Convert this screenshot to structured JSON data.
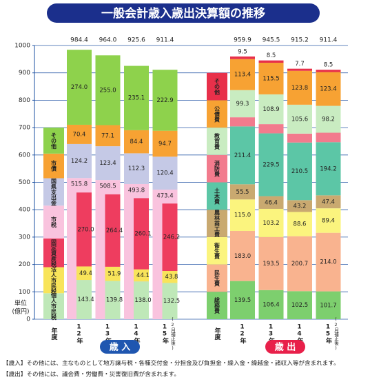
{
  "chart_data": {
    "type": "stacked_bar",
    "title": "一般会計歳入歳出決算額の推移",
    "y_label": [
      "単位",
      "(億円)"
    ],
    "year_label": "年度",
    "categories": [
      "12年",
      "13年",
      "14年",
      "15年"
    ],
    "category_note": "(2月補正後)",
    "ylim": [
      0,
      1000
    ],
    "yticks": [
      0,
      100,
      200,
      300,
      400,
      500,
      600,
      700,
      800,
      900,
      1000
    ],
    "grid": true,
    "groups": [
      {
        "name": "歳 入",
        "color": "#1f56b0",
        "totals": [
          984.4,
          964.0,
          925.6,
          911.4
        ],
        "total_labels": [
          "984.4",
          "964.0",
          "925.6",
          "911.4"
        ],
        "series": [
          {
            "name": "市税",
            "color": "#f9c3de",
            "values": [
              515.8,
              508.5,
              493.8,
              473.4
            ],
            "value_labels": [
              "515.8",
              "508.5",
              "493.8",
              "473.4"
            ],
            "parts": [
              {
                "name": "個人市民税",
                "color": "#bfe8b8",
                "values": [
                  143.4,
                  139.8,
                  138.0,
                  132.5
                ],
                "value_labels": [
                  "143.4",
                  "139.8",
                  "138.0",
                  "132.5"
                ]
              },
              {
                "name": "法人市民税",
                "color": "#f8e45a",
                "values": [
                  49.4,
                  51.9,
                  44.1,
                  43.8
                ],
                "value_labels": [
                  "49.4",
                  "51.9",
                  "44.1",
                  "43.8"
                ]
              },
              {
                "name": "固定資産税",
                "color": "#ee3d5f",
                "values": [
                  270.0,
                  264.4,
                  260.1,
                  246.2
                ],
                "value_labels": [
                  "270.0",
                  "264.4",
                  "260.1",
                  "246.2"
                ]
              }
            ]
          },
          {
            "name": "国県支出金",
            "color": "#c5c9e6",
            "values": [
              124.2,
              123.4,
              112.3,
              120.4
            ],
            "value_labels": [
              "124.2",
              "123.4",
              "112.3",
              "120.4"
            ]
          },
          {
            "name": "市債",
            "color": "#f7a233",
            "values": [
              70.4,
              77.1,
              84.4,
              94.7
            ],
            "value_labels": [
              "70.4",
              "77.1",
              "84.4",
              "94.7"
            ]
          },
          {
            "name": "その他",
            "color": "#8ed24c",
            "values": [
              274.0,
              255.0,
              235.1,
              222.9
            ],
            "value_labels": [
              "274.0",
              "255.0",
              "235.1",
              "222.9"
            ]
          }
        ]
      },
      {
        "name": "歳 出",
        "color": "#e8204a",
        "totals": [
          959.9,
          945.5,
          915.2,
          911.4
        ],
        "total_labels": [
          "959.9",
          "945.5",
          "915.2",
          "911.4"
        ],
        "series": [
          {
            "name": "総務費",
            "color": "#7dcf6e",
            "values": [
              139.5,
              106.4,
              102.5,
              101.7
            ],
            "value_labels": [
              "139.5",
              "106.4",
              "102.5",
              "101.7"
            ]
          },
          {
            "name": "民生費",
            "color": "#f9b38f",
            "values": [
              183.0,
              193.5,
              200.7,
              214.0
            ],
            "value_labels": [
              "183.0",
              "193.5",
              "200.7",
              "214.0"
            ]
          },
          {
            "name": "衛生費",
            "color": "#fbf47e",
            "values": [
              115.0,
              103.2,
              88.6,
              89.4
            ],
            "value_labels": [
              "115.0",
              "103.2",
              "88.6",
              "89.4"
            ]
          },
          {
            "name": "農林商工費",
            "color": "#c9a970",
            "values": [
              55.5,
              46.4,
              43.2,
              47.4
            ],
            "value_labels": [
              "55.5",
              "46.4",
              "43.2",
              "47.4"
            ]
          },
          {
            "name": "土木費",
            "color": "#5cc6a6",
            "values": [
              211.4,
              229.5,
              210.5,
              194.2
            ],
            "value_labels": [
              "211.4",
              "229.5",
              "210.5",
              "194.2"
            ]
          },
          {
            "name": "消防費",
            "color": "#f27b8d",
            "values": [
              33.3,
              33.6,
              32.6,
              34.6
            ],
            "value_labels": [
              "33.3",
              "33.6",
              "32.6",
              "34.6"
            ]
          },
          {
            "name": "教育費",
            "color": "#c9ecc1",
            "values": [
              99.3,
              108.9,
              105.6,
              98.2
            ],
            "value_labels": [
              "99.3",
              "108.9",
              "105.6",
              "98.2"
            ]
          },
          {
            "name": "公債費",
            "color": "#f7a233",
            "values": [
              113.4,
              115.5,
              123.8,
              123.4
            ],
            "value_labels": [
              "113.4",
              "115.5",
              "123.8",
              "123.4"
            ]
          },
          {
            "name": "その他",
            "color": "#e8304a",
            "values": [
              9.5,
              8.5,
              7.7,
              8.5
            ],
            "value_labels": [
              "9.5",
              "8.5",
              "7.7",
              "8.5"
            ]
          }
        ]
      }
    ],
    "notes": [
      "【歳入】その他には、主なものとして地方譲与税・各種交付金・分担金及び負担金・繰入金・繰越金・諸収入等が含まれます。",
      "【歳出】その他には、議会費・労働費・災害復旧費が含まれます。"
    ]
  }
}
